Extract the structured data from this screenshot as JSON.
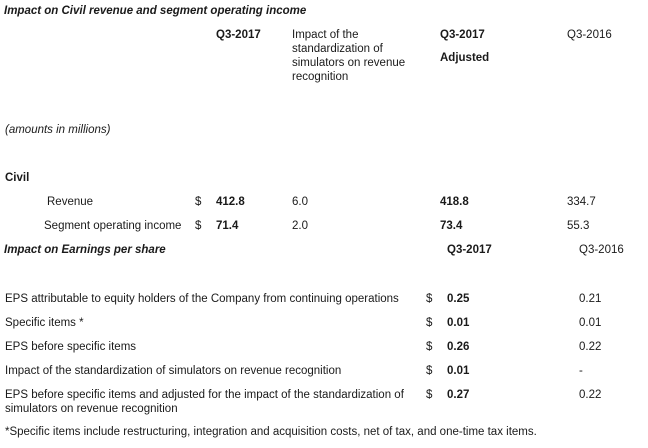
{
  "civil_section": {
    "title": "Impact on Civil revenue and segment operating income",
    "headers": {
      "q3_2017": "Q3-2017",
      "impact": "Impact of the standardization of simulators on revenue recognition",
      "q3_2017_adj_line1": "Q3-2017",
      "q3_2017_adj_line2": "Adjusted",
      "q3_2016": "Q3-2016"
    },
    "amounts_note": "(amounts in millions)",
    "group_label": "Civil",
    "rows": [
      {
        "label": "Revenue",
        "currency": "$",
        "q3_2017": "412.8",
        "impact": "6.0",
        "adjusted": "418.8",
        "q3_2016": "334.7"
      },
      {
        "label": "Segment operating income",
        "currency": "$",
        "q3_2017": "71.4",
        "impact": "2.0",
        "adjusted": "73.4",
        "q3_2016": "55.3"
      }
    ]
  },
  "eps_section": {
    "title": "Impact on Earnings per share",
    "headers": {
      "q3_2017": "Q3-2017",
      "q3_2016": "Q3-2016"
    },
    "rows": [
      {
        "label": "EPS attributable to equity holders of the Company from continuing operations",
        "currency": "$",
        "q3_2017": "0.25",
        "q3_2016": "0.21"
      },
      {
        "label": "Specific items *",
        "currency": "$",
        "q3_2017": "0.01",
        "q3_2016": "0.01"
      },
      {
        "label": "EPS before specific items",
        "currency": "$",
        "q3_2017": "0.26",
        "q3_2016": "0.22"
      },
      {
        "label": "Impact of the standardization of simulators on revenue recognition",
        "currency": "$",
        "q3_2017": "0.01",
        "q3_2016": "-"
      },
      {
        "label_line1": "EPS before specific items and adjusted for the impact of the standardization of",
        "label_line2": "simulators on revenue recognition",
        "currency": "$",
        "q3_2017": "0.27",
        "q3_2016": "0.22"
      }
    ]
  },
  "footnote": "*Specific items include restructuring, integration and acquisition costs, net of tax, and one-time tax items."
}
